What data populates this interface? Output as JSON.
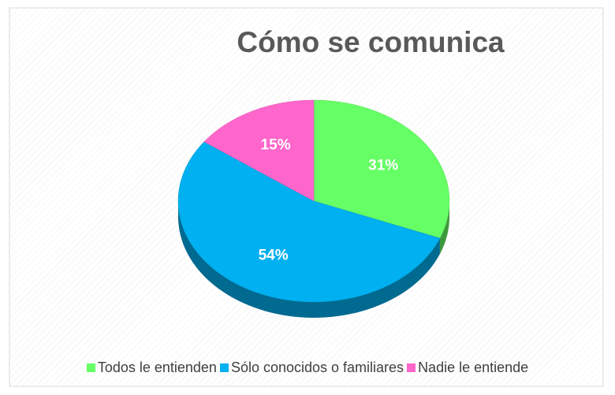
{
  "chart_data": {
    "type": "pie",
    "title": "Cómo se comunica",
    "categories": [
      "Todos le entienden",
      "Sólo conocidos o familiares",
      "Nadie le entiende"
    ],
    "values": [
      31,
      54,
      15
    ],
    "value_labels": [
      "31%",
      "54%",
      "15%"
    ],
    "colors": [
      "#66ff66",
      "#00b0f0",
      "#ff66cc"
    ],
    "legend": "bottom"
  }
}
